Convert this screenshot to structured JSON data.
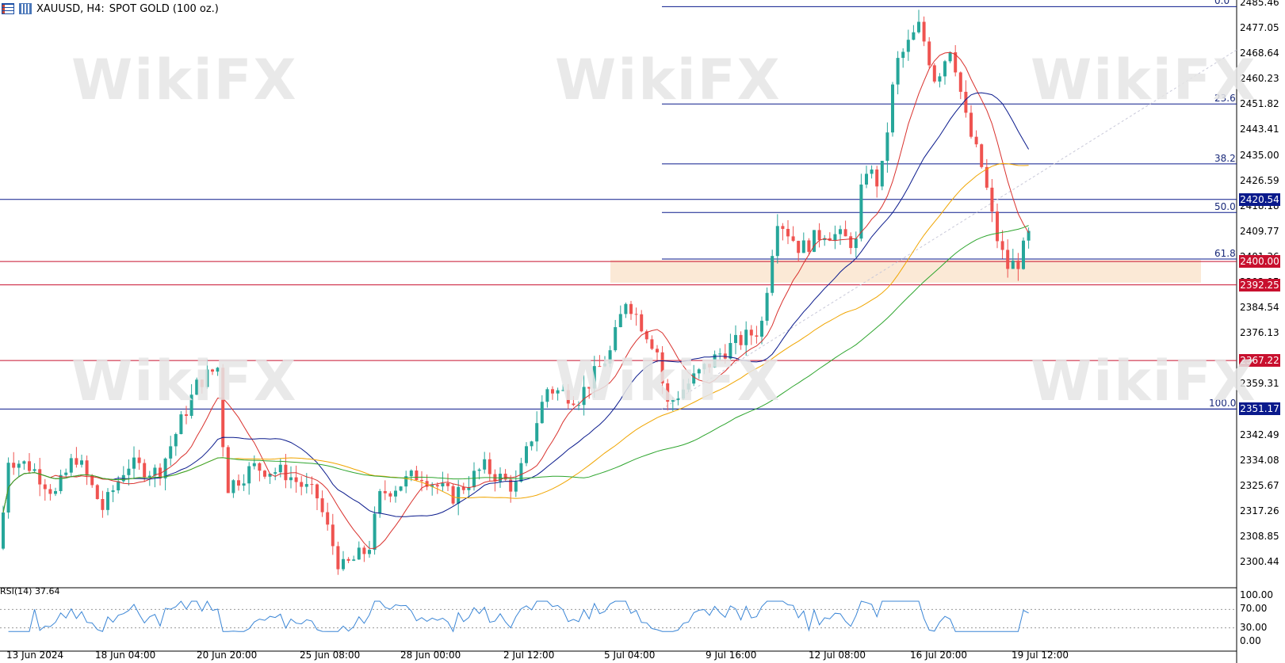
{
  "header": {
    "symbol": "XAUUSD, H4:",
    "description": "SPOT GOLD (100 oz.)"
  },
  "price_axis": [
    "2485.46",
    "2477.05",
    "2468.64",
    "2460.23",
    "2451.82",
    "2443.41",
    "2435.00",
    "2426.59",
    "2418.18",
    "2409.77",
    "2401.36",
    "2392.95",
    "2384.54",
    "2376.13",
    "2367.72",
    "2359.31",
    "2350.90",
    "2342.49",
    "2334.08",
    "2325.67",
    "2317.26",
    "2308.85",
    "2300.44"
  ],
  "price_tags": [
    {
      "label": "2420.54",
      "color": "#0a1a8c"
    },
    {
      "label": "2400.00",
      "color": "#c8102e"
    },
    {
      "label": "2392.25",
      "color": "#c8102e"
    },
    {
      "label": "2367.22",
      "color": "#c8102e"
    },
    {
      "label": "2351.17",
      "color": "#0a1a8c"
    }
  ],
  "fib_levels": [
    "0.0",
    "23.6",
    "38.2",
    "50.0",
    "61.8",
    "100.0"
  ],
  "time_axis": [
    "13 Jun 2024",
    "18 Jun 04:00",
    "20 Jun 20:00",
    "25 Jun 08:00",
    "28 Jun 00:00",
    "2 Jul 12:00",
    "5 Jul 04:00",
    "9 Jul 16:00",
    "12 Jul 08:00",
    "16 Jul 20:00",
    "19 Jul 12:00"
  ],
  "rsi": {
    "label": "RSI(14) 37.64",
    "axis": [
      "100.00",
      "70.00",
      "30.00",
      "0.00"
    ]
  },
  "watermark": "WikiFX",
  "colors": {
    "up": "#26a69a",
    "down": "#ef5350",
    "support_line": "#c8102e",
    "level_blue": "#0a1a8c",
    "ma_red": "#d9322e",
    "ma_blue": "#0a1a8c",
    "ma_orange": "#f0a500",
    "ma_green": "#2ea52e",
    "rsi_line": "#3b86d6",
    "zone": "#fbe9d6"
  }
}
